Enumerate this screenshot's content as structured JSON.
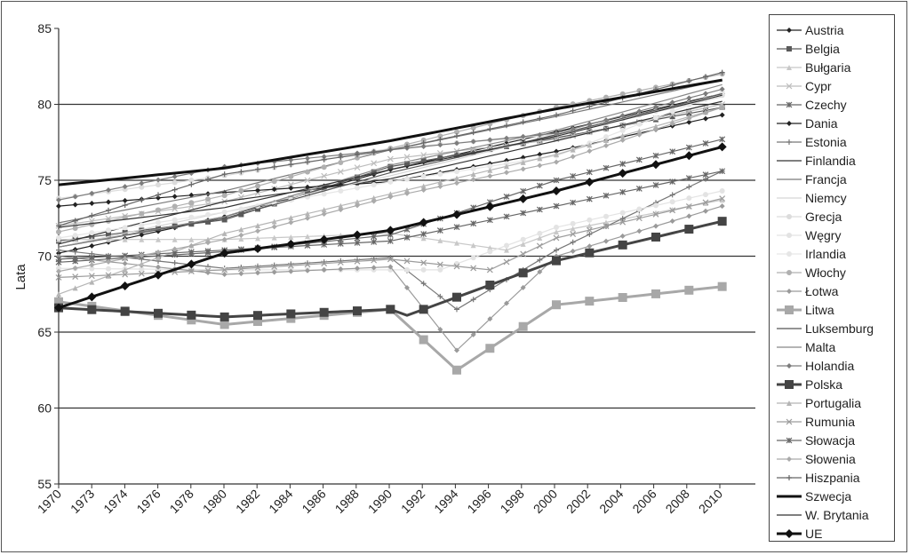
{
  "chart_data": {
    "type": "line",
    "ylabel": "Lata",
    "xlabel": "",
    "title": "",
    "ylim": [
      55,
      85
    ],
    "yticks": [
      55,
      60,
      65,
      70,
      75,
      80,
      85
    ],
    "xlim": [
      1970,
      2012
    ],
    "xticks": [
      1970,
      1973,
      1974,
      1976,
      1978,
      1980,
      1982,
      1984,
      1986,
      1988,
      1990,
      1992,
      1994,
      1996,
      1998,
      2000,
      2002,
      2004,
      2006,
      2008,
      2010
    ],
    "gridlines": [
      60,
      65,
      70,
      75,
      80
    ],
    "legend_position": "right",
    "series": [
      {
        "name": "Austria",
        "color": "#222222",
        "marker": "diamond",
        "width": 1.2,
        "points": [
          [
            1970,
            70.2
          ],
          [
            1980,
            72.6
          ],
          [
            1990,
            75.7
          ],
          [
            2000,
            78.2
          ],
          [
            2010,
            80.7
          ]
        ]
      },
      {
        "name": "Belgia",
        "color": "#5a5a5a",
        "marker": "square",
        "width": 1.2,
        "points": [
          [
            1970,
            71.0
          ],
          [
            1980,
            72.4
          ],
          [
            1990,
            75.9
          ],
          [
            2000,
            77.8
          ],
          [
            2010,
            79.8
          ]
        ]
      },
      {
        "name": "Bułgaria",
        "color": "#c8c8c8",
        "marker": "triangle",
        "width": 1.2,
        "points": [
          [
            1970,
            71.1
          ],
          [
            1980,
            71.1
          ],
          [
            1990,
            71.5
          ],
          [
            1997,
            70.4
          ],
          [
            2000,
            71.6
          ],
          [
            2010,
            73.7
          ]
        ]
      },
      {
        "name": "Cypr",
        "color": "#bdbdbd",
        "marker": "cross",
        "width": 1.2,
        "points": [
          [
            1970,
            72.0
          ],
          [
            1980,
            73.6
          ],
          [
            1990,
            76.4
          ],
          [
            2000,
            77.7
          ],
          [
            2010,
            80.0
          ]
        ]
      },
      {
        "name": "Czechy",
        "color": "#666666",
        "marker": "star",
        "width": 1.2,
        "points": [
          [
            1970,
            69.6
          ],
          [
            1980,
            70.3
          ],
          [
            1990,
            71.4
          ],
          [
            2000,
            75.0
          ],
          [
            2010,
            77.7
          ]
        ]
      },
      {
        "name": "Dania",
        "color": "#222222",
        "marker": "diamond",
        "width": 1.2,
        "points": [
          [
            1970,
            73.3
          ],
          [
            1980,
            74.2
          ],
          [
            1990,
            74.9
          ],
          [
            2000,
            76.9
          ],
          [
            2010,
            79.3
          ]
        ]
      },
      {
        "name": "Estonia",
        "color": "#777777",
        "marker": "plus",
        "width": 1.2,
        "points": [
          [
            1970,
            70.4
          ],
          [
            1980,
            69.2
          ],
          [
            1990,
            69.9
          ],
          [
            1994,
            66.5
          ],
          [
            2000,
            70.4
          ],
          [
            2010,
            75.6
          ]
        ]
      },
      {
        "name": "Finlandia",
        "color": "#333333",
        "marker": "none",
        "width": 1.2,
        "points": [
          [
            1970,
            70.8
          ],
          [
            1980,
            73.6
          ],
          [
            1990,
            75.1
          ],
          [
            2000,
            77.6
          ],
          [
            2010,
            80.2
          ]
        ]
      },
      {
        "name": "Francja",
        "color": "#7a7a7a",
        "marker": "none",
        "width": 1.2,
        "points": [
          [
            1970,
            72.2
          ],
          [
            1980,
            74.3
          ],
          [
            1990,
            77.0
          ],
          [
            2000,
            79.2
          ],
          [
            2010,
            81.6
          ]
        ]
      },
      {
        "name": "Niemcy",
        "color": "#d5d5d5",
        "marker": "none",
        "width": 1.2,
        "points": [
          [
            1970,
            70.6
          ],
          [
            1980,
            72.9
          ],
          [
            1990,
            75.3
          ],
          [
            2000,
            78.0
          ],
          [
            2010,
            80.5
          ]
        ]
      },
      {
        "name": "Grecja",
        "color": "#dcdcdc",
        "marker": "circle",
        "width": 1.2,
        "points": [
          [
            1970,
            73.8
          ],
          [
            1980,
            75.3
          ],
          [
            1990,
            77.1
          ],
          [
            2000,
            78.0
          ],
          [
            2010,
            80.6
          ]
        ]
      },
      {
        "name": "Węgry",
        "color": "#e3e3e3",
        "marker": "circle",
        "width": 1.2,
        "points": [
          [
            1970,
            69.2
          ],
          [
            1980,
            69.1
          ],
          [
            1993,
            69.1
          ],
          [
            2000,
            71.9
          ],
          [
            2010,
            74.3
          ]
        ]
      },
      {
        "name": "Irlandia",
        "color": "#e6e6e6",
        "marker": "circle",
        "width": 1.2,
        "points": [
          [
            1970,
            71.2
          ],
          [
            1980,
            72.9
          ],
          [
            1990,
            74.9
          ],
          [
            2000,
            76.6
          ],
          [
            2010,
            80.8
          ]
        ]
      },
      {
        "name": "Włochy",
        "color": "#b0b0b0",
        "marker": "circle",
        "width": 1.2,
        "points": [
          [
            1970,
            71.6
          ],
          [
            1980,
            74.0
          ],
          [
            1990,
            77.1
          ],
          [
            2000,
            79.8
          ],
          [
            2010,
            82.0
          ]
        ]
      },
      {
        "name": "Łotwa",
        "color": "#9a9a9a",
        "marker": "diamond",
        "width": 1.2,
        "points": [
          [
            1970,
            70.0
          ],
          [
            1980,
            68.8
          ],
          [
            1990,
            69.3
          ],
          [
            1994,
            63.8
          ],
          [
            2000,
            70.0
          ],
          [
            2010,
            73.3
          ]
        ]
      },
      {
        "name": "Litwa",
        "color": "#a8a8a8",
        "marker": "square",
        "width": 3,
        "points": [
          [
            1970,
            67.0
          ],
          [
            1980,
            65.5
          ],
          [
            1990,
            66.5
          ],
          [
            1994,
            62.5
          ],
          [
            2000,
            66.8
          ],
          [
            2010,
            68.0
          ]
        ]
      },
      {
        "name": "Luksemburg",
        "color": "#555555",
        "marker": "none",
        "width": 1.2,
        "points": [
          [
            1970,
            70.6
          ],
          [
            1980,
            72.5
          ],
          [
            1990,
            75.5
          ],
          [
            2000,
            78.0
          ],
          [
            2010,
            80.7
          ]
        ]
      },
      {
        "name": "Malta",
        "color": "#888888",
        "marker": "none",
        "width": 1.2,
        "points": [
          [
            1970,
            70.6
          ],
          [
            1980,
            72.6
          ],
          [
            1990,
            76.0
          ],
          [
            2000,
            78.3
          ],
          [
            2010,
            81.3
          ]
        ]
      },
      {
        "name": "Holandia",
        "color": "#7d7d7d",
        "marker": "diamond",
        "width": 1.2,
        "points": [
          [
            1970,
            73.7
          ],
          [
            1980,
            75.9
          ],
          [
            1990,
            77.0
          ],
          [
            2000,
            78.1
          ],
          [
            2010,
            81.0
          ]
        ]
      },
      {
        "name": "Polska",
        "color": "#444444",
        "marker": "square",
        "width": 3,
        "points": [
          [
            1970,
            66.6
          ],
          [
            1980,
            66.0
          ],
          [
            1990,
            66.5
          ],
          [
            1991,
            66.1
          ],
          [
            2000,
            69.7
          ],
          [
            2010,
            72.3
          ]
        ]
      },
      {
        "name": "Portugalia",
        "color": "#b5b5b5",
        "marker": "triangle",
        "width": 1.2,
        "points": [
          [
            1970,
            67.5
          ],
          [
            1980,
            71.5
          ],
          [
            1990,
            74.1
          ],
          [
            2000,
            76.7
          ],
          [
            2010,
            79.8
          ]
        ]
      },
      {
        "name": "Rumunia",
        "color": "#9c9c9c",
        "marker": "cross",
        "width": 1.2,
        "points": [
          [
            1970,
            68.6
          ],
          [
            1980,
            69.1
          ],
          [
            1990,
            69.8
          ],
          [
            1996,
            69.1
          ],
          [
            2000,
            71.2
          ],
          [
            2010,
            73.8
          ]
        ]
      },
      {
        "name": "Słowacja",
        "color": "#666666",
        "marker": "star",
        "width": 1.2,
        "points": [
          [
            1970,
            69.8
          ],
          [
            1980,
            70.4
          ],
          [
            1990,
            71.0
          ],
          [
            2000,
            73.3
          ],
          [
            2010,
            75.6
          ]
        ]
      },
      {
        "name": "Słowenia",
        "color": "#aaaaaa",
        "marker": "diamond",
        "width": 1.2,
        "points": [
          [
            1970,
            69.0
          ],
          [
            1980,
            71.1
          ],
          [
            1990,
            73.9
          ],
          [
            2000,
            76.2
          ],
          [
            2010,
            79.8
          ]
        ]
      },
      {
        "name": "Hiszpania",
        "color": "#666666",
        "marker": "plus",
        "width": 1.2,
        "points": [
          [
            1970,
            72.0
          ],
          [
            1980,
            75.4
          ],
          [
            1990,
            77.0
          ],
          [
            2000,
            79.3
          ],
          [
            2010,
            82.1
          ]
        ]
      },
      {
        "name": "Szwecja",
        "color": "#111111",
        "marker": "none",
        "width": 3,
        "points": [
          [
            1970,
            74.7
          ],
          [
            1980,
            75.8
          ],
          [
            1990,
            77.6
          ],
          [
            2000,
            79.7
          ],
          [
            2010,
            81.6
          ]
        ]
      },
      {
        "name": "W. Brytania",
        "color": "#333333",
        "marker": "none",
        "width": 1.2,
        "points": [
          [
            1970,
            71.9
          ],
          [
            1980,
            73.2
          ],
          [
            1990,
            75.7
          ],
          [
            2000,
            77.9
          ],
          [
            2010,
            80.6
          ]
        ]
      },
      {
        "name": "UE",
        "color": "#111111",
        "marker": "diamond",
        "width": 3,
        "points": [
          [
            1970,
            66.6
          ],
          [
            1980,
            70.2
          ],
          [
            1990,
            71.7
          ],
          [
            2000,
            74.3
          ],
          [
            2010,
            77.2
          ]
        ]
      }
    ]
  }
}
